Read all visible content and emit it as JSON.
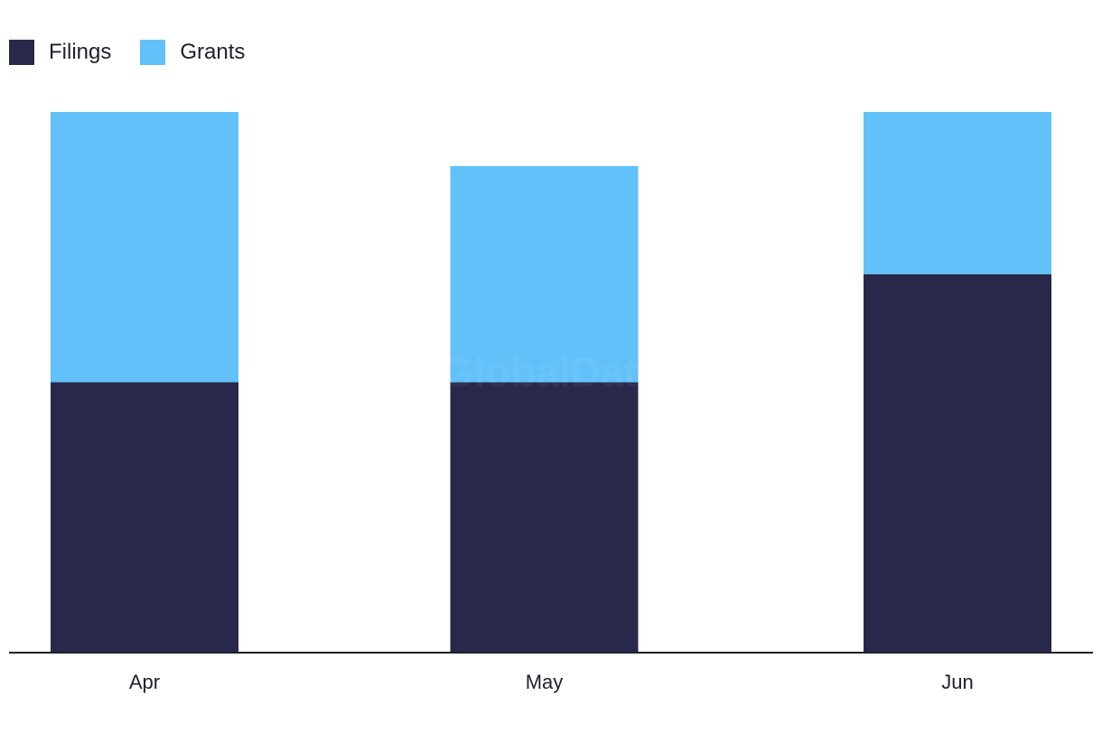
{
  "chart_data": {
    "type": "bar",
    "stacked": true,
    "categories": [
      "Apr",
      "May",
      "Jun"
    ],
    "series": [
      {
        "name": "Filings",
        "values": [
          5,
          5,
          7
        ],
        "color": "#28284b"
      },
      {
        "name": "Grants",
        "values": [
          5,
          4,
          3
        ],
        "color": "#62c1f9"
      }
    ],
    "ylim": [
      0,
      10
    ],
    "grid": false,
    "legend": "top-left",
    "watermark": "GlobalData"
  }
}
